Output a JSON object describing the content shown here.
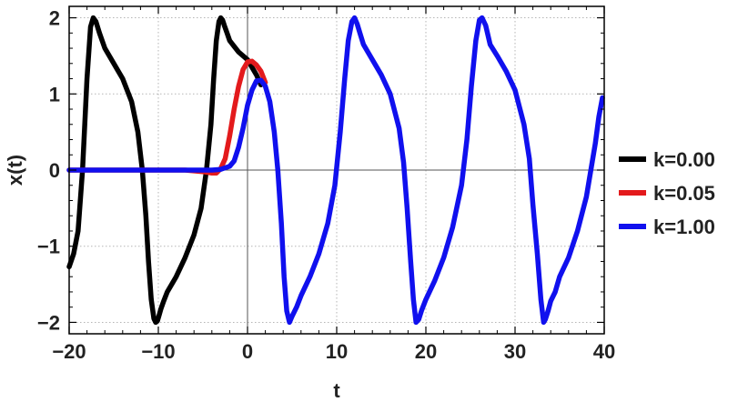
{
  "chart_data": {
    "type": "line",
    "title": "",
    "xlabel": "t",
    "ylabel": "x(t)",
    "xlim": [
      -20,
      40
    ],
    "ylim": [
      -2.15,
      2.15
    ],
    "xticks": [
      -20,
      -10,
      0,
      10,
      20,
      30,
      40
    ],
    "xtick_labels": [
      "−20",
      "−10",
      "0",
      "10",
      "20",
      "30",
      "40"
    ],
    "yticks": [
      -2,
      -1,
      0,
      1,
      2
    ],
    "ytick_labels": [
      "−2",
      "−1",
      "0",
      "1",
      "2"
    ],
    "grid": true,
    "legend_position": "right",
    "series": [
      {
        "name": "k=0.00",
        "color": "#000000",
        "x": [
          -20,
          -19.5,
          -19,
          -18.5,
          -18,
          -17.6,
          -17.3,
          -17,
          -16.6,
          -16,
          -15,
          -14,
          -13,
          -12.3,
          -11.8,
          -11.4,
          -11.1,
          -10.8,
          -10.5,
          -10.3,
          -10.1,
          -9.9,
          -9.7,
          -9.4,
          -9,
          -8,
          -7,
          -6,
          -5.2,
          -4.6,
          -4.1,
          -3.8,
          -3.5,
          -3.2,
          -3.0,
          -2.8,
          -2.6,
          -2.3,
          -2,
          -1,
          0,
          0.5,
          1,
          1.5
        ],
        "y": [
          -1.27,
          -1.1,
          -0.8,
          0,
          1.2,
          1.88,
          2.0,
          1.95,
          1.8,
          1.6,
          1.4,
          1.2,
          0.9,
          0.5,
          0,
          -0.6,
          -1.2,
          -1.7,
          -1.95,
          -2.0,
          -1.98,
          -1.9,
          -1.82,
          -1.72,
          -1.6,
          -1.4,
          -1.15,
          -0.85,
          -0.5,
          0,
          0.6,
          1.2,
          1.7,
          1.95,
          2.0,
          1.97,
          1.9,
          1.8,
          1.7,
          1.55,
          1.45,
          1.35,
          1.25,
          1.12
        ]
      },
      {
        "name": "k=0.05",
        "color": "#e31a1c",
        "x": [
          -20,
          -15,
          -10,
          -7,
          -5,
          -4,
          -3.5,
          -3,
          -2.5,
          -2,
          -1.5,
          -1,
          -0.5,
          0,
          0.5,
          1,
          1.5,
          2
        ],
        "y": [
          0,
          0,
          0,
          0,
          -0.02,
          -0.04,
          -0.04,
          0.02,
          0.15,
          0.45,
          0.8,
          1.1,
          1.32,
          1.42,
          1.43,
          1.38,
          1.3,
          1.15
        ]
      },
      {
        "name": "k=1.00",
        "color": "#1010ee",
        "x": [
          -20,
          -15,
          -10,
          -6,
          -4,
          -3,
          -2,
          -1.5,
          -1,
          -0.5,
          0,
          0.5,
          1,
          1.5,
          2,
          2.5,
          3,
          3.4,
          3.8,
          4.1,
          4.4,
          4.7,
          5,
          5.5,
          6,
          7,
          8,
          9,
          9.8,
          10.4,
          10.9,
          11.3,
          11.7,
          12,
          12.3,
          12.6,
          13,
          14,
          15,
          16,
          17,
          17.5,
          17.9,
          18.3,
          18.6,
          18.9,
          19.2,
          19.5,
          20,
          21,
          22,
          23,
          24,
          24.6,
          25.1,
          25.6,
          26,
          26.3,
          26.7,
          27.2,
          28,
          29,
          30,
          31,
          31.6,
          32,
          32.5,
          32.9,
          33.2,
          33.4,
          33.7,
          34,
          34.5,
          35,
          36,
          37,
          38,
          38.5,
          39,
          39.4,
          39.8
        ],
        "y": [
          0,
          0,
          0,
          0,
          0,
          0.01,
          0.05,
          0.12,
          0.3,
          0.55,
          0.85,
          1.05,
          1.17,
          1.18,
          1.1,
          0.9,
          0.5,
          0,
          -0.7,
          -1.4,
          -1.85,
          -2.0,
          -1.92,
          -1.8,
          -1.65,
          -1.4,
          -1.1,
          -0.7,
          -0.2,
          0.5,
          1.2,
          1.7,
          1.95,
          2.0,
          1.92,
          1.8,
          1.65,
          1.45,
          1.25,
          1.0,
          0.55,
          0.1,
          -0.5,
          -1.2,
          -1.7,
          -2.0,
          -1.96,
          -1.85,
          -1.7,
          -1.45,
          -1.15,
          -0.75,
          -0.2,
          0.4,
          1.1,
          1.7,
          1.97,
          2.0,
          1.9,
          1.65,
          1.5,
          1.3,
          1.05,
          0.6,
          0.15,
          -0.45,
          -1.1,
          -1.7,
          -2.0,
          -1.96,
          -1.85,
          -1.72,
          -1.6,
          -1.4,
          -1.15,
          -0.8,
          -0.35,
          0,
          0.35,
          0.7,
          0.95
        ]
      }
    ]
  }
}
